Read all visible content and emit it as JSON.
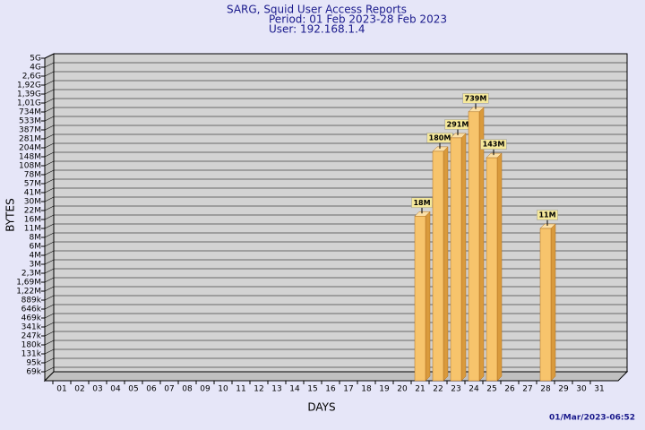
{
  "chart_data": {
    "type": "bar",
    "title": [
      "SARG, Squid User Access Reports",
      "Period: 01 Feb 2023-28 Feb 2023",
      "User: 192.168.1.4"
    ],
    "x_label": "DAYS",
    "y_label": "BYTES",
    "footer": "01/Mar/2023-06:52",
    "categories": [
      "01",
      "02",
      "03",
      "04",
      "05",
      "06",
      "07",
      "08",
      "09",
      "10",
      "11",
      "12",
      "13",
      "14",
      "15",
      "16",
      "17",
      "18",
      "19",
      "20",
      "21",
      "22",
      "23",
      "24",
      "25",
      "26",
      "27",
      "28",
      "29",
      "30",
      "31"
    ],
    "values": [
      null,
      null,
      null,
      null,
      null,
      null,
      null,
      null,
      null,
      null,
      null,
      null,
      null,
      null,
      null,
      null,
      null,
      null,
      null,
      null,
      18000000,
      180000000,
      291000000,
      739000000,
      143000000,
      null,
      null,
      11000000,
      null,
      null,
      null
    ],
    "value_labels": [
      null,
      null,
      null,
      null,
      null,
      null,
      null,
      null,
      null,
      null,
      null,
      null,
      null,
      null,
      null,
      null,
      null,
      null,
      null,
      null,
      "18M",
      "180M",
      "291M",
      "739M",
      "143M",
      null,
      null,
      "11M",
      null,
      null,
      null
    ],
    "color": "#f7c46c",
    "log_scale": true,
    "grid": true,
    "ylim": [
      50000,
      5000000000
    ],
    "yticks": [
      {
        "value": 5000000000,
        "label": "5G"
      },
      {
        "value": 4000000000,
        "label": "4G"
      },
      {
        "value": 2600000000,
        "label": "2,6G"
      },
      {
        "value": 1920000000,
        "label": "1,92G"
      },
      {
        "value": 1390000000,
        "label": "1,39G"
      },
      {
        "value": 1010000000,
        "label": "1,01G"
      },
      {
        "value": 734000000,
        "label": "734M"
      },
      {
        "value": 533000000,
        "label": "533M"
      },
      {
        "value": 387000000,
        "label": "387M"
      },
      {
        "value": 281000000,
        "label": "281M"
      },
      {
        "value": 204000000,
        "label": "204M"
      },
      {
        "value": 148000000,
        "label": "148M"
      },
      {
        "value": 108000000,
        "label": "108M"
      },
      {
        "value": 78000000,
        "label": "78M"
      },
      {
        "value": 57000000,
        "label": "57M"
      },
      {
        "value": 41000000,
        "label": "41M"
      },
      {
        "value": 30000000,
        "label": "30M"
      },
      {
        "value": 22000000,
        "label": "22M"
      },
      {
        "value": 16000000,
        "label": "16M"
      },
      {
        "value": 11000000,
        "label": "11M"
      },
      {
        "value": 8000000,
        "label": "8M"
      },
      {
        "value": 6000000,
        "label": "6M"
      },
      {
        "value": 4000000,
        "label": "4M"
      },
      {
        "value": 3000000,
        "label": "3M"
      },
      {
        "value": 2300000,
        "label": "2,3M"
      },
      {
        "value": 1690000,
        "label": "1,69M"
      },
      {
        "value": 1220000,
        "label": "1,22M"
      },
      {
        "value": 889000,
        "label": "889k"
      },
      {
        "value": 646000,
        "label": "646k"
      },
      {
        "value": 469000,
        "label": "469k"
      },
      {
        "value": 341000,
        "label": "341k"
      },
      {
        "value": 247000,
        "label": "247k"
      },
      {
        "value": 180000,
        "label": "180k"
      },
      {
        "value": 131000,
        "label": "131k"
      },
      {
        "value": 95000,
        "label": "95k"
      },
      {
        "value": 69000,
        "label": "69k"
      }
    ]
  }
}
